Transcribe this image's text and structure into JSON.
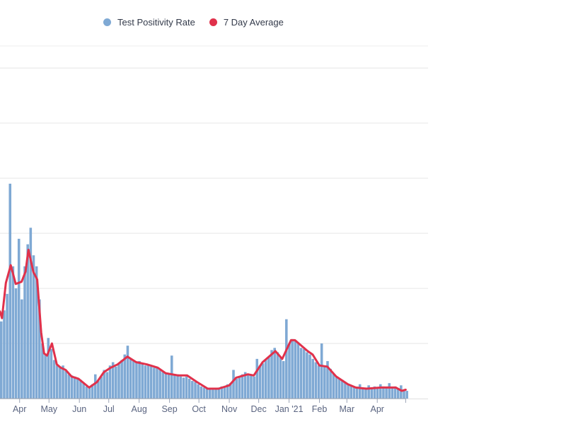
{
  "chart_data": {
    "type": "bar",
    "title": "",
    "xlabel": "",
    "ylabel": "",
    "ylim": [
      0,
      32
    ],
    "y_gridlines": [
      5,
      10,
      15,
      20,
      25,
      30
    ],
    "grid": true,
    "legend_placement": "top-center",
    "legend": [
      {
        "label": "Test Positivity Rate",
        "color": "#7fa9d4",
        "marker": "circle"
      },
      {
        "label": "7 Day Average",
        "color": "#e0314b",
        "marker": "circle"
      }
    ],
    "x_start_date": "2020-03-12",
    "x_end_day": 414,
    "x_ticks": [
      {
        "label": "Apr",
        "day": 20
      },
      {
        "label": "May",
        "day": 50
      },
      {
        "label": "Jun",
        "day": 81
      },
      {
        "label": "Jul",
        "day": 111
      },
      {
        "label": "Aug",
        "day": 142
      },
      {
        "label": "Sep",
        "day": 173
      },
      {
        "label": "Oct",
        "day": 203
      },
      {
        "label": "Nov",
        "day": 234
      },
      {
        "label": "Dec",
        "day": 264
      },
      {
        "label": "Jan '21",
        "day": 295
      },
      {
        "label": "Feb",
        "day": 326
      },
      {
        "label": "Mar",
        "day": 354
      },
      {
        "label": "Apr",
        "day": 385
      }
    ],
    "series": [
      {
        "name": "Test Positivity Rate",
        "type": "bar",
        "interval_days": 3,
        "values": [
          7,
          8,
          9.5,
          19.5,
          12,
          10,
          14.5,
          9,
          12,
          14,
          15.5,
          13,
          12,
          9,
          5,
          4,
          5.5,
          4.5,
          3.5,
          3,
          2.8,
          3,
          2.5,
          2.2,
          2.1,
          2.0,
          1.8,
          1.7,
          1.4,
          1.1,
          1.0,
          1.3,
          2.2,
          1.6,
          2.0,
          2.6,
          2.4,
          3.0,
          3.3,
          2.9,
          3.2,
          3.5,
          4.0,
          4.8,
          3.6,
          3.4,
          3.3,
          3.4,
          3.2,
          3.0,
          3.1,
          2.9,
          2.8,
          2.8,
          2.6,
          2.4,
          2.3,
          2.2,
          3.9,
          2.1,
          2.2,
          2.0,
          1.9,
          2.0,
          1.8,
          1.6,
          1.5,
          1.3,
          1.1,
          1.0,
          0.9,
          0.9,
          0.8,
          0.9,
          1.0,
          1.1,
          1.0,
          1.3,
          1.4,
          2.6,
          1.8,
          2.0,
          2.2,
          2.4,
          2.2,
          2.1,
          2.0,
          3.6,
          3.0,
          3.2,
          3.5,
          3.8,
          4.4,
          4.6,
          4.2,
          3.8,
          3.4,
          7.2,
          5.0,
          5.4,
          5.3,
          5.0,
          4.6,
          4.5,
          4.2,
          4.0,
          3.6,
          3.3,
          3.0,
          5.0,
          2.9,
          3.4,
          2.7,
          2.3,
          2.0,
          1.8,
          1.7,
          1.5,
          1.3,
          1.2,
          1.1,
          1.0,
          1.3,
          0.9,
          1.0,
          1.2,
          1.0,
          1.1,
          1.0,
          1.3,
          1.1,
          1.0,
          1.4,
          1.0,
          1.1,
          0.9,
          1.2,
          0.8,
          0.7
        ]
      },
      {
        "name": "7 Day Average",
        "type": "line",
        "points_day_value": [
          [
            0,
            7.9
          ],
          [
            2,
            7.3
          ],
          [
            6,
            10.5
          ],
          [
            11,
            12.1
          ],
          [
            16,
            10.4
          ],
          [
            22,
            10.6
          ],
          [
            26,
            11.5
          ],
          [
            29,
            13.5
          ],
          [
            34,
            11.5
          ],
          [
            38,
            10.8
          ],
          [
            42,
            6.0
          ],
          [
            45,
            4.1
          ],
          [
            48,
            3.9
          ],
          [
            53,
            5.0
          ],
          [
            58,
            3.1
          ],
          [
            62,
            2.8
          ],
          [
            67,
            2.6
          ],
          [
            73,
            2.0
          ],
          [
            80,
            1.8
          ],
          [
            91,
            1.0
          ],
          [
            99,
            1.5
          ],
          [
            106,
            2.4
          ],
          [
            113,
            2.8
          ],
          [
            120,
            3.1
          ],
          [
            130,
            3.8
          ],
          [
            139,
            3.3
          ],
          [
            150,
            3.1
          ],
          [
            161,
            2.8
          ],
          [
            169,
            2.3
          ],
          [
            182,
            2.1
          ],
          [
            191,
            2.1
          ],
          [
            201,
            1.5
          ],
          [
            212,
            0.9
          ],
          [
            223,
            0.9
          ],
          [
            234,
            1.2
          ],
          [
            241,
            1.9
          ],
          [
            253,
            2.2
          ],
          [
            259,
            2.1
          ],
          [
            268,
            3.3
          ],
          [
            281,
            4.3
          ],
          [
            288,
            3.6
          ],
          [
            297,
            5.3
          ],
          [
            301,
            5.3
          ],
          [
            314,
            4.3
          ],
          [
            319,
            4.0
          ],
          [
            326,
            3.0
          ],
          [
            334,
            2.9
          ],
          [
            343,
            2.0
          ],
          [
            355,
            1.3
          ],
          [
            363,
            1.0
          ],
          [
            374,
            0.9
          ],
          [
            389,
            1.0
          ],
          [
            404,
            1.0
          ],
          [
            410,
            0.7
          ],
          [
            414,
            0.8
          ]
        ]
      }
    ]
  }
}
